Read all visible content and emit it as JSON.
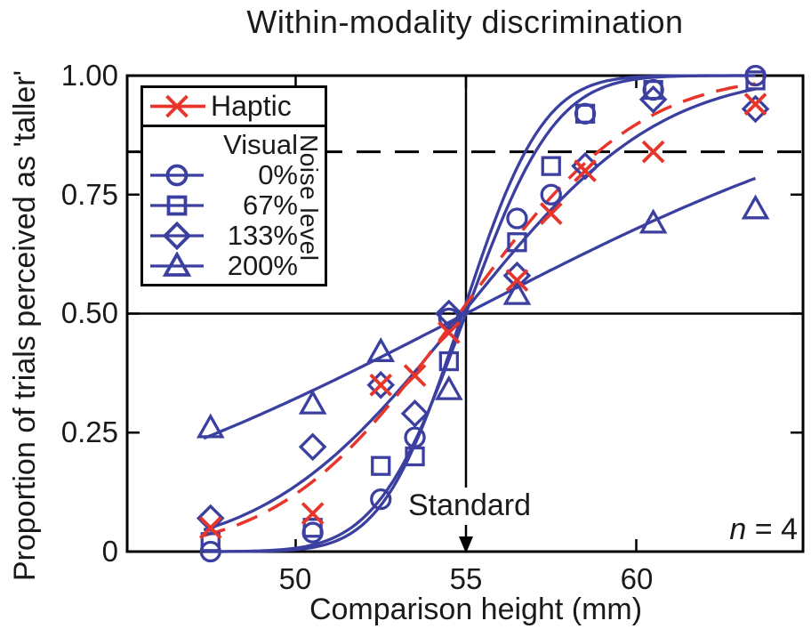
{
  "chart_data": {
    "type": "scatter",
    "title": "Within-modality discrimination",
    "xlabel": "Comparison height (mm)",
    "ylabel": "Proportion of trials perceived as 'taller'",
    "xlim": [
      45.1,
      64.9
    ],
    "ylim": [
      0,
      1
    ],
    "x_ticks": [
      50,
      55,
      60
    ],
    "x_tick_labels": [
      "50",
      "55",
      "60"
    ],
    "y_ticks": [
      0,
      0.25,
      0.5,
      0.75,
      1.0
    ],
    "y_tick_labels": [
      "0",
      "0.25",
      "0.50",
      "0.75",
      "1.00"
    ],
    "grid": false,
    "reference_lines": {
      "horizontal_solid_y": 0.5,
      "horizontal_dashed_y": 0.84,
      "vertical_solid_x": 55
    },
    "annotations": {
      "standard": "Standard",
      "standard_x": 55,
      "n_symbol": "n",
      "n_rest": " = 4"
    },
    "colors": {
      "visual": "#3b3f9f",
      "haptic": "#e8352b",
      "axis": "#000000",
      "text": "#1a1a1a"
    },
    "legend": {
      "position": "upper-left",
      "haptic_label": "Haptic",
      "visual_header": "Visual",
      "noise_axis_label": "Noise level",
      "entries": [
        "0%",
        "67%",
        "133%",
        "200%"
      ]
    },
    "series": [
      {
        "name": "Visual 0% noise",
        "marker": "circle",
        "color_key": "visual",
        "line": "solid",
        "fit": {
          "type": "cumulative-gaussian",
          "pse": 54.9,
          "sigma": 1.85
        },
        "x": [
          47.5,
          50.5,
          52.5,
          53.5,
          54.5,
          56.5,
          57.5,
          58.5,
          60.5,
          63.5
        ],
        "y": [
          0.0,
          0.04,
          0.11,
          0.24,
          0.49,
          0.7,
          0.75,
          0.92,
          0.97,
          1.0
        ]
      },
      {
        "name": "Visual 67% noise",
        "marker": "square",
        "color_key": "visual",
        "line": "solid",
        "fit": {
          "type": "cumulative-gaussian",
          "pse": 55.0,
          "sigma": 2.05
        },
        "x": [
          47.5,
          50.5,
          52.5,
          53.5,
          54.5,
          56.5,
          57.5,
          58.5,
          60.5,
          63.5
        ],
        "y": [
          0.02,
          0.05,
          0.18,
          0.2,
          0.4,
          0.65,
          0.81,
          0.92,
          0.97,
          0.99
        ]
      },
      {
        "name": "Visual 133% noise",
        "marker": "diamond",
        "color_key": "visual",
        "line": "solid",
        "fit": {
          "type": "cumulative-gaussian",
          "pse": 54.9,
          "sigma": 4.5
        },
        "x": [
          47.5,
          50.5,
          52.5,
          53.5,
          54.5,
          56.5,
          58.5,
          60.5,
          63.5
        ],
        "y": [
          0.07,
          0.22,
          0.35,
          0.29,
          0.5,
          0.58,
          0.81,
          0.95,
          0.93
        ]
      },
      {
        "name": "Visual 200% noise",
        "marker": "triangle",
        "color_key": "visual",
        "line": "solid",
        "fit": {
          "type": "cumulative-gaussian",
          "pse": 55.0,
          "sigma": 10.8
        },
        "x": [
          47.5,
          50.5,
          52.5,
          54.5,
          56.5,
          60.5,
          63.5
        ],
        "y": [
          0.26,
          0.31,
          0.42,
          0.34,
          0.54,
          0.69,
          0.72
        ]
      },
      {
        "name": "Haptic",
        "marker": "x",
        "color_key": "haptic",
        "line": "dashed",
        "fit": {
          "type": "cumulative-gaussian",
          "pse": 54.8,
          "sigma": 4.1
        },
        "x": [
          47.5,
          50.5,
          52.5,
          53.5,
          54.5,
          56.5,
          57.5,
          58.5,
          60.5,
          63.5
        ],
        "y": [
          0.05,
          0.08,
          0.35,
          0.37,
          0.46,
          0.57,
          0.71,
          0.8,
          0.84,
          0.94
        ]
      }
    ]
  }
}
